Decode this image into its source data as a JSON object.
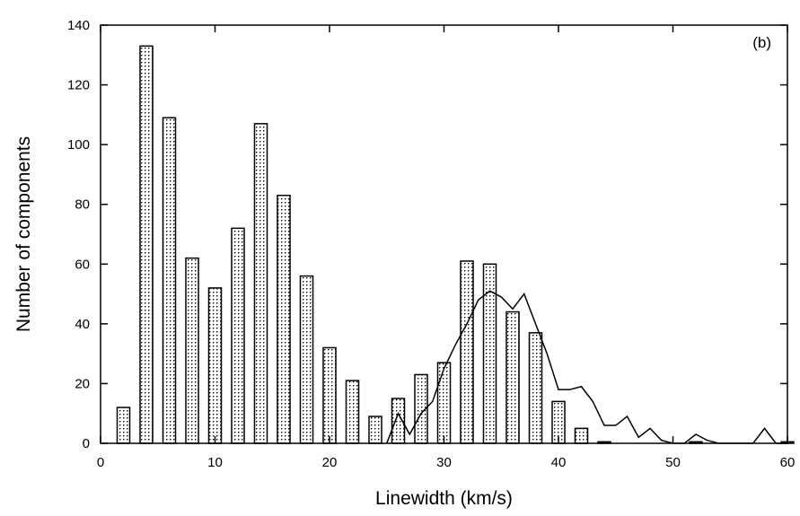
{
  "chart_data": {
    "type": "bar",
    "panel_label": "(b)",
    "xlabel": "Linewidth (km/s)",
    "ylabel": "Number of components",
    "xlim": [
      0,
      60
    ],
    "ylim": [
      0,
      140
    ],
    "xticks": [
      0,
      10,
      20,
      30,
      40,
      50,
      60
    ],
    "yticks": [
      0,
      20,
      40,
      60,
      80,
      100,
      120,
      140
    ],
    "grid": false,
    "legend": "none",
    "bar_width": 1.1,
    "bars": [
      {
        "x": 2,
        "y": 12
      },
      {
        "x": 4,
        "y": 133
      },
      {
        "x": 6,
        "y": 109
      },
      {
        "x": 8,
        "y": 62
      },
      {
        "x": 10,
        "y": 52
      },
      {
        "x": 12,
        "y": 72
      },
      {
        "x": 14,
        "y": 107
      },
      {
        "x": 16,
        "y": 83
      },
      {
        "x": 18,
        "y": 56
      },
      {
        "x": 20,
        "y": 32
      },
      {
        "x": 22,
        "y": 21
      },
      {
        "x": 24,
        "y": 9
      },
      {
        "x": 26,
        "y": 15
      },
      {
        "x": 28,
        "y": 23
      },
      {
        "x": 30,
        "y": 27
      },
      {
        "x": 32,
        "y": 61
      },
      {
        "x": 34,
        "y": 60
      },
      {
        "x": 36,
        "y": 44
      },
      {
        "x": 38,
        "y": 37
      },
      {
        "x": 40,
        "y": 14
      },
      {
        "x": 42,
        "y": 5
      },
      {
        "x": 44,
        "y": 0.5
      },
      {
        "x": 52,
        "y": 0.5
      },
      {
        "x": 60,
        "y": 0.5
      }
    ],
    "model_curve": {
      "x": [
        25,
        26,
        27,
        28,
        29,
        30,
        31,
        32,
        33,
        34,
        35,
        36,
        37,
        38,
        39,
        40,
        41,
        42,
        43,
        44,
        45,
        46,
        47,
        48,
        49,
        50,
        51,
        52,
        53,
        54,
        55,
        56,
        57,
        58,
        59,
        60
      ],
      "y": [
        0,
        10,
        3,
        10,
        14,
        25,
        33,
        40,
        48,
        51,
        49,
        45,
        50,
        40,
        30,
        18,
        18,
        19,
        14,
        6,
        6,
        9,
        2,
        5,
        1,
        0,
        0,
        3,
        1,
        0,
        0,
        0,
        0,
        5,
        0,
        0
      ]
    },
    "colors": {
      "axis": "#000000",
      "bar_fill": "#ffffff",
      "bar_stipple": "#000000",
      "curve": "#000000"
    }
  }
}
